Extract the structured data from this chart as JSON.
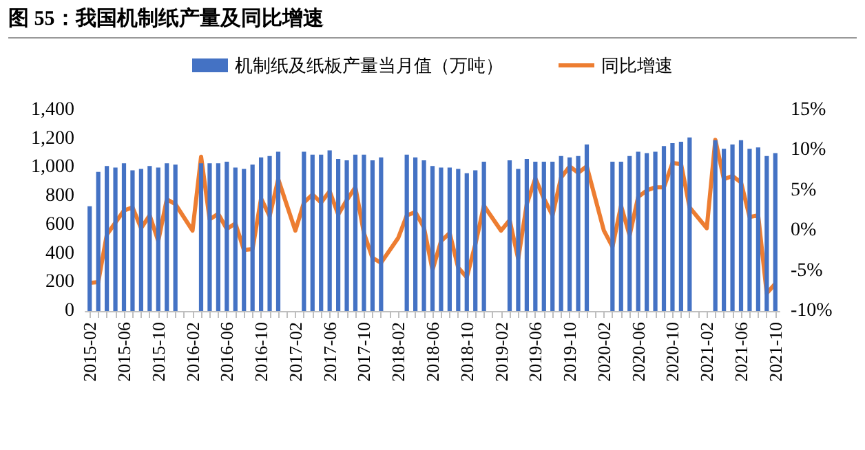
{
  "chart_data": {
    "type": "bar",
    "title": "图 55：我国机制纸产量及同比增速",
    "categories": [
      "2015-02",
      null,
      null,
      null,
      "2015-06",
      null,
      null,
      null,
      "2015-10",
      null,
      null,
      null,
      "2016-02",
      null,
      null,
      null,
      "2016-06",
      null,
      null,
      null,
      "2016-10",
      null,
      null,
      null,
      "2017-02",
      null,
      null,
      null,
      "2017-06",
      null,
      null,
      null,
      "2017-10",
      null,
      null,
      null,
      "2018-02",
      null,
      null,
      null,
      "2018-06",
      null,
      null,
      null,
      "2018-10",
      null,
      null,
      null,
      "2019-02",
      null,
      null,
      null,
      "2019-06",
      null,
      null,
      null,
      "2019-10",
      null,
      null,
      null,
      "2020-02",
      null,
      null,
      null,
      "2020-06",
      null,
      null,
      null,
      "2020-10",
      null,
      null,
      null,
      "2021-02",
      null,
      null,
      null,
      "2021-06",
      null,
      null,
      null,
      "2021-10"
    ],
    "series": [
      {
        "name": "机制纸及纸板产量当月值（万吨）",
        "color": "#4472c4",
        "values": [
          730,
          970,
          1010,
          1000,
          1030,
          980,
          990,
          1010,
          1000,
          1030,
          1020,
          null,
          null,
          1030,
          1030,
          1030,
          1040,
          1000,
          990,
          1020,
          1070,
          1080,
          1110,
          null,
          null,
          1110,
          1090,
          1090,
          1120,
          1060,
          1050,
          1090,
          1090,
          1050,
          1070,
          null,
          null,
          1090,
          1070,
          1050,
          1010,
          1000,
          1000,
          990,
          960,
          980,
          1040,
          null,
          null,
          1050,
          990,
          1060,
          1040,
          1040,
          1040,
          1080,
          1070,
          1080,
          1160,
          null,
          null,
          1040,
          1040,
          1080,
          1110,
          1100,
          1110,
          1150,
          1170,
          1180,
          1210,
          null,
          null,
          1190,
          1130,
          1160,
          1190,
          1130,
          1140,
          1080,
          1100
        ]
      },
      {
        "name": "同比增速",
        "type": "line",
        "axis": "y2",
        "color": "#ed7d31",
        "values": [
          -6.5,
          -6.4,
          -0.5,
          1.0,
          2.5,
          2.9,
          0.3,
          1.9,
          -1.3,
          3.9,
          3.3,
          null,
          0.0,
          9.2,
          1.4,
          2.1,
          0.2,
          0.9,
          -2.4,
          -2.3,
          4.0,
          1.8,
          6.4,
          null,
          0.0,
          3.5,
          4.5,
          3.5,
          4.9,
          2.0,
          3.8,
          5.4,
          -0.3,
          -3.4,
          -4.0,
          null,
          -0.9,
          1.9,
          2.3,
          0.4,
          -4.9,
          -1.3,
          -0.3,
          -4.6,
          -5.8,
          -1.7,
          3.1,
          null,
          0.0,
          1.3,
          -3.5,
          3.3,
          6.5,
          4.0,
          1.9,
          6.6,
          8.0,
          7.2,
          8.0,
          null,
          0.0,
          -2.0,
          3.1,
          -0.6,
          4.2,
          5.0,
          5.4,
          5.4,
          8.4,
          8.3,
          2.9,
          null,
          0.3,
          11.3,
          6.4,
          6.8,
          6.0,
          1.7,
          1.9,
          -7.8,
          -6.6
        ]
      }
    ],
    "ylim": [
      0,
      1400
    ],
    "yticks": [
      {
        "value": 0,
        "label": "0"
      },
      {
        "value": 200,
        "label": "200"
      },
      {
        "value": 400,
        "label": "400"
      },
      {
        "value": 600,
        "label": "600"
      },
      {
        "value": 800,
        "label": "800"
      },
      {
        "value": 1000,
        "label": "1,000"
      },
      {
        "value": 1200,
        "label": "1,200"
      },
      {
        "value": 1400,
        "label": "1,400"
      }
    ],
    "y2lim": [
      -10,
      15
    ],
    "y2ticks": [
      {
        "value": -10,
        "label": "-10%"
      },
      {
        "value": -5,
        "label": "-5%"
      },
      {
        "value": 0,
        "label": "0%"
      },
      {
        "value": 5,
        "label": "5%"
      },
      {
        "value": 10,
        "label": "10%"
      },
      {
        "value": 15,
        "label": "15%"
      }
    ],
    "legend": "top"
  }
}
